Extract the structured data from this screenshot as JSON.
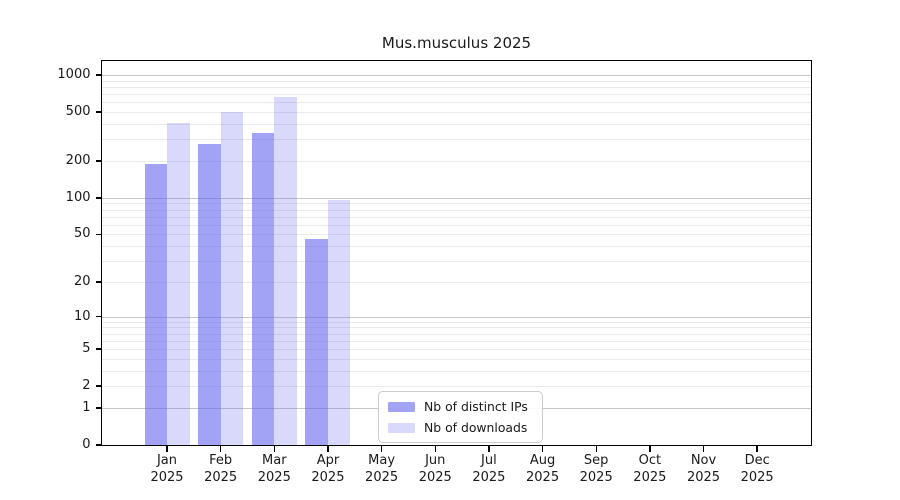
{
  "chart_data": {
    "type": "bar",
    "title": "Mus.musculus 2025",
    "categories": [
      "Jan 2025",
      "Feb 2025",
      "Mar 2025",
      "Apr 2025",
      "May 2025",
      "Jun 2025",
      "Jul 2025",
      "Aug 2025",
      "Sep 2025",
      "Oct 2025",
      "Nov 2025",
      "Dec 2025"
    ],
    "series": [
      {
        "name": "Nb of distinct IPs",
        "base_color": "#6666ee",
        "opacity": 0.6,
        "rendered_color": "#a3a3f5",
        "values": [
          190,
          277,
          338,
          46,
          0,
          0,
          0,
          0,
          0,
          0,
          0,
          0
        ]
      },
      {
        "name": "Nb of downloads",
        "base_color": "#6666ee",
        "opacity": 0.25,
        "rendered_color": "#d9d9fb",
        "values": [
          405,
          500,
          665,
          96,
          0,
          0,
          0,
          0,
          0,
          0,
          0,
          0
        ]
      }
    ],
    "xlabel": "",
    "ylabel": "",
    "y_scale": "log10(value+1)",
    "y_ticks": [
      0,
      1,
      2,
      5,
      10,
      20,
      50,
      100,
      200,
      500,
      1000
    ],
    "ylim": [
      0,
      1300
    ],
    "grid": "on",
    "legend_position": "lower-center-left"
  },
  "colors": {
    "major_grid": "#c6c6c6",
    "minor_grid": "#eaeaea",
    "spine": "#000000",
    "text": "#1a1a1a",
    "background": "#ffffff"
  }
}
